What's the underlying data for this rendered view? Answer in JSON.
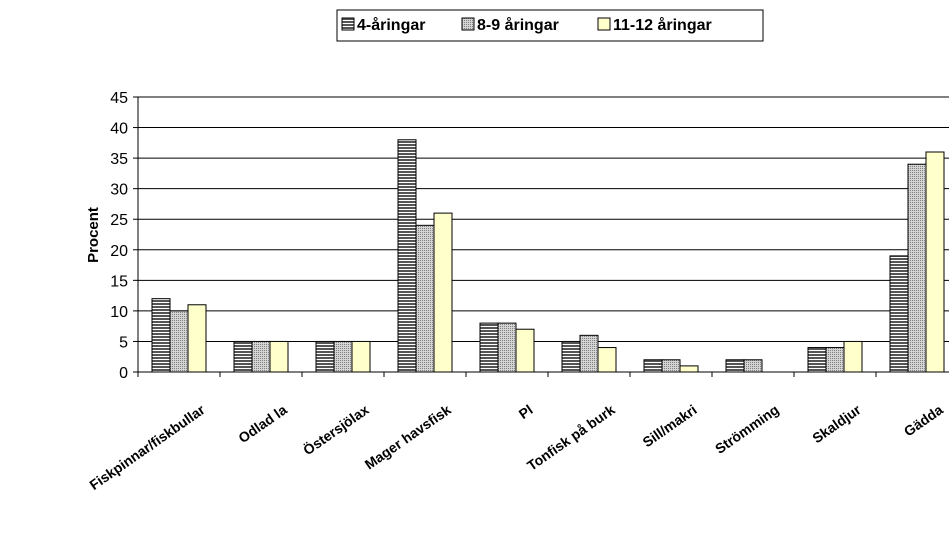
{
  "chart_data": {
    "type": "bar",
    "ylabel": "Procent",
    "ylim": [
      0,
      45
    ],
    "yticks": [
      0,
      5,
      10,
      15,
      20,
      25,
      30,
      35,
      40,
      45
    ],
    "grid": "horizontal",
    "legend_position": "top",
    "categories": [
      "Fiskpinnar/fiskbullar",
      "Odlad la",
      "Östersjölax",
      "Mager havsfisk",
      "Pl",
      "Tonfisk på burk",
      "Sill/makri",
      "Strömming",
      "Skaldjur",
      "Gädda"
    ],
    "series": [
      {
        "name": "4-åringar",
        "values": [
          12,
          5,
          5,
          38,
          8,
          5,
          2,
          2,
          4,
          19
        ],
        "color": "#808080",
        "pattern": "horizontal-stripes"
      },
      {
        "name": "8-9 åringar",
        "values": [
          10,
          5,
          5,
          24,
          8,
          6,
          2,
          2,
          4,
          34
        ],
        "color": "#c0c0c0",
        "pattern": "dots"
      },
      {
        "name": "11-12 åringar",
        "values": [
          11,
          5,
          5,
          26,
          7,
          4,
          1,
          null,
          5,
          36
        ],
        "color": "#ffffcc",
        "pattern": "solid"
      }
    ]
  }
}
